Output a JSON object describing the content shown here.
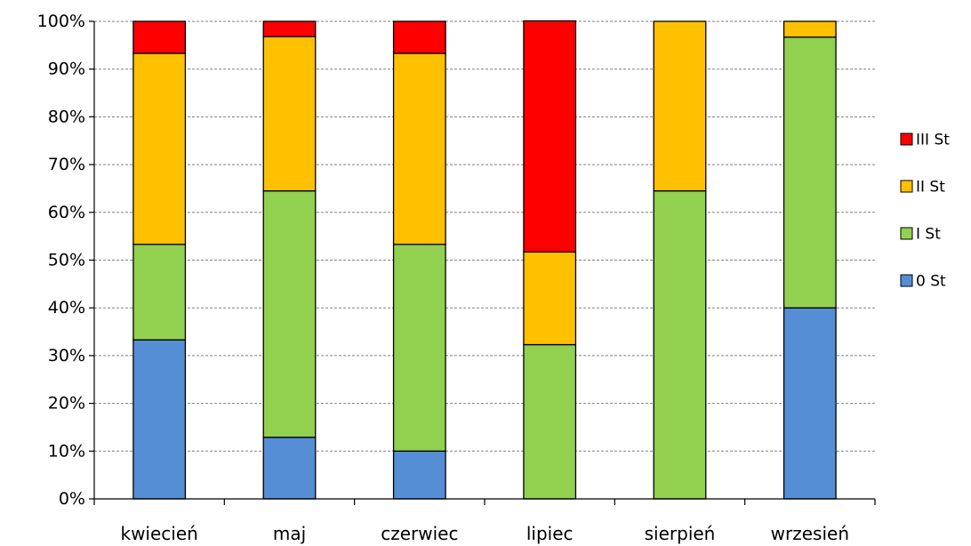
{
  "chart_data": {
    "type": "bar",
    "stacked": true,
    "normalized_percent": true,
    "categories": [
      "kwiecień",
      "maj",
      "czerwiec",
      "lipiec",
      "sierpień",
      "wrzesień"
    ],
    "series": [
      {
        "name": "0 St",
        "color": "#558ED5",
        "values": [
          33.3,
          12.9,
          10.0,
          0.0,
          0.0,
          40.0
        ]
      },
      {
        "name": "I St",
        "color": "#92D050",
        "values": [
          20.0,
          51.6,
          43.3,
          32.3,
          64.5,
          56.7
        ]
      },
      {
        "name": "II St",
        "color": "#FFC000",
        "values": [
          40.0,
          32.3,
          40.0,
          19.4,
          35.5,
          3.3
        ]
      },
      {
        "name": "III St",
        "color": "#FF0000",
        "values": [
          6.7,
          3.2,
          6.7,
          48.4,
          0.0,
          0.0
        ]
      }
    ],
    "title": "",
    "xlabel": "",
    "ylabel": "",
    "ylim": [
      0,
      100
    ],
    "yticks": [
      "0%",
      "10%",
      "20%",
      "30%",
      "40%",
      "50%",
      "60%",
      "70%",
      "80%",
      "90%",
      "100%"
    ],
    "grid": true,
    "legend_position": "right",
    "legend_order": [
      "III St",
      "II St",
      "I St",
      "0 St"
    ]
  }
}
